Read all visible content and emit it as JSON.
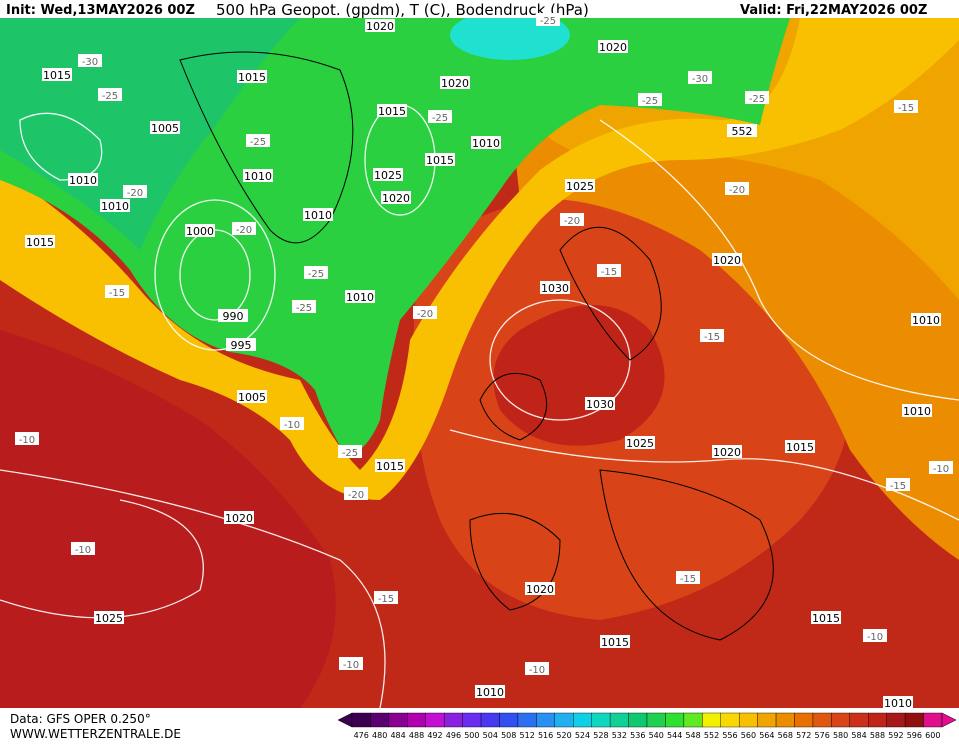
{
  "header": {
    "init": "Init: Wed,13MAY2026 00Z",
    "title": "500 hPa Geopot. (gpdm), T (C), Bodendruck (hPa)",
    "valid": "Valid: Fri,22MAY2026 00Z"
  },
  "footer": {
    "source": "Data: GFS OPER 0.250°",
    "site": "WWW.WETTERZENTRALE.DE"
  },
  "map": {
    "pressure_labels": [
      "1015",
      "1005",
      "1010",
      "1010",
      "1015",
      "1000",
      "990",
      "995",
      "1005",
      "1020",
      "1025",
      "1010",
      "1015",
      "1010",
      "1010",
      "1010",
      "1015",
      "1020",
      "1020",
      "1015",
      "1015",
      "1025",
      "1020",
      "1010",
      "1020",
      "552",
      "1025",
      "1030",
      "1030",
      "1025",
      "1020",
      "1020",
      "1015",
      "1010",
      "1010",
      "1020",
      "1015",
      "1015",
      "1010"
    ],
    "temperature_labels": [
      "-30",
      "-25",
      "-25",
      "-20",
      "-20",
      "-25",
      "-25",
      "-15",
      "-10",
      "-10",
      "-10",
      "-20",
      "-25",
      "-15",
      "-10",
      "-10",
      "-15",
      "-15",
      "-15",
      "-20",
      "-20",
      "-25",
      "-25",
      "-30",
      "-25",
      "-20",
      "-15",
      "-15",
      "-10",
      "-10",
      "-25"
    ]
  },
  "colorbar": {
    "labels": [
      "476",
      "480",
      "484",
      "488",
      "492",
      "496",
      "500",
      "504",
      "508",
      "512",
      "516",
      "520",
      "524",
      "528",
      "532",
      "536",
      "540",
      "544",
      "548",
      "552",
      "556",
      "560",
      "564",
      "568",
      "572",
      "576",
      "580",
      "584",
      "588",
      "592",
      "596",
      "600"
    ],
    "colors": [
      "#3c0050",
      "#5a0070",
      "#8a0090",
      "#b000b0",
      "#c010d0",
      "#8c20e0",
      "#6a2cf0",
      "#4838f0",
      "#3050f0",
      "#2a70f0",
      "#2890f0",
      "#20b0f0",
      "#10d0e8",
      "#10d8c0",
      "#10d098",
      "#10c870",
      "#20d050",
      "#30e030",
      "#60e820",
      "#f0f000",
      "#f8d800",
      "#f8c000",
      "#f0a400",
      "#ec8c00",
      "#e87000",
      "#e05810",
      "#d84418",
      "#cc3018",
      "#c02418",
      "#a81818",
      "#901010",
      "#e0108c"
    ]
  }
}
